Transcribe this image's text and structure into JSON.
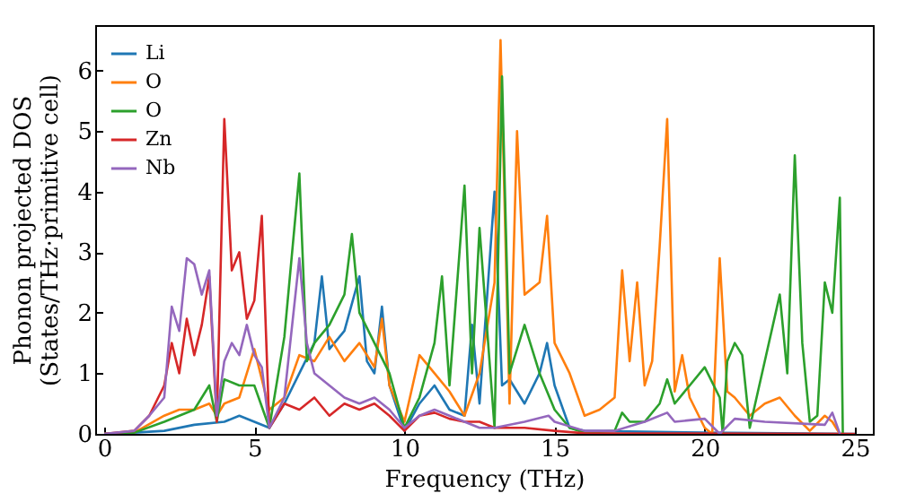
{
  "chart_data": {
    "type": "line",
    "xlabel": "Frequency (THz)",
    "ylabel": "Phonon projected DOS\n(States/THz·primitive cell)",
    "xlim": [
      -0.3,
      25.6
    ],
    "ylim": [
      0,
      6.75
    ],
    "xticks": [
      0,
      5,
      10,
      15,
      20,
      25
    ],
    "yticks": [
      0,
      1,
      2,
      3,
      4,
      5,
      6
    ],
    "grid": false,
    "legend": "top left",
    "series": [
      {
        "name": "Li",
        "color": "#1f77b4",
        "x": [
          0,
          1,
          2,
          3,
          4,
          4.5,
          5,
          5.5,
          6,
          6.5,
          7,
          7.25,
          7.5,
          8,
          8.5,
          8.75,
          9,
          9.25,
          9.5,
          10,
          10.5,
          11,
          11.5,
          12,
          12.25,
          12.5,
          13,
          13.25,
          13.5,
          14,
          14.5,
          14.75,
          15,
          15.5,
          16,
          20,
          25
        ],
        "values": [
          0,
          0.02,
          0.05,
          0.15,
          0.2,
          0.3,
          0.2,
          0.1,
          0.5,
          1.0,
          1.5,
          2.6,
          1.4,
          1.7,
          2.6,
          1.2,
          1.0,
          2.1,
          0.8,
          0.05,
          0.5,
          0.8,
          0.4,
          0.3,
          1.8,
          0.5,
          4.0,
          0.8,
          0.9,
          0.5,
          1.0,
          1.5,
          0.8,
          0.1,
          0.05,
          0.02,
          0
        ]
      },
      {
        "name": "O",
        "color": "#ff7f0e",
        "x": [
          0,
          1,
          2,
          2.5,
          3,
          3.5,
          3.75,
          4,
          4.5,
          5,
          5.5,
          6,
          6.5,
          7,
          7.5,
          8,
          8.5,
          9,
          9.25,
          9.5,
          10,
          10.5,
          11,
          11.5,
          12,
          12.5,
          13,
          13.2,
          13.5,
          13.75,
          14,
          14.5,
          14.75,
          15,
          15.5,
          16,
          16.5,
          17,
          17.25,
          17.5,
          17.75,
          18,
          18.25,
          18.5,
          18.75,
          19,
          19.25,
          19.5,
          20,
          20.25,
          20.5,
          20.75,
          21,
          21.5,
          22,
          22.5,
          23,
          23.5,
          24,
          24.25,
          24.5
        ],
        "values": [
          0,
          0.02,
          0.3,
          0.4,
          0.4,
          0.5,
          0.3,
          0.5,
          0.6,
          1.4,
          0.4,
          0.6,
          1.3,
          1.2,
          1.6,
          1.2,
          1.5,
          1.1,
          1.9,
          0.8,
          0.2,
          1.3,
          1.0,
          0.7,
          0.3,
          1.0,
          2.5,
          6.5,
          0.5,
          5.0,
          2.3,
          2.5,
          3.6,
          1.5,
          1.0,
          0.3,
          0.4,
          0.6,
          2.7,
          1.2,
          2.5,
          0.8,
          1.2,
          3.1,
          5.2,
          0.7,
          1.3,
          0.6,
          0.1,
          0,
          2.9,
          0.7,
          0.6,
          0.3,
          0.5,
          0.6,
          0.3,
          0.05,
          0.3,
          0.2,
          0
        ]
      },
      {
        "name": "O",
        "color": "#2ca02c",
        "x": [
          0,
          1,
          2,
          2.5,
          3,
          3.5,
          3.75,
          4,
          4.5,
          5,
          5.5,
          6,
          6.5,
          6.75,
          7,
          7.5,
          8,
          8.25,
          8.5,
          9,
          9.5,
          10,
          10.5,
          11,
          11.25,
          11.5,
          12,
          12.25,
          12.5,
          13,
          13.25,
          13.5,
          14,
          14.5,
          15,
          15.5,
          16,
          17,
          17.25,
          17.5,
          18,
          18.5,
          18.75,
          19,
          19.5,
          20,
          20.5,
          20.6,
          20.75,
          21,
          21.25,
          21.5,
          22,
          22.5,
          22.75,
          23,
          23.25,
          23.5,
          23.75,
          24,
          24.25,
          24.5,
          24.6
        ],
        "values": [
          0,
          0.02,
          0.2,
          0.3,
          0.4,
          0.8,
          0.2,
          0.9,
          0.8,
          0.8,
          0.1,
          1.6,
          4.3,
          1.2,
          1.5,
          1.8,
          2.3,
          3.3,
          2.0,
          1.5,
          1.0,
          0.1,
          0.6,
          1.5,
          2.6,
          0.8,
          4.1,
          1.0,
          3.4,
          0.1,
          5.9,
          1.0,
          1.8,
          1.0,
          0.4,
          0.1,
          0.02,
          0.05,
          0.35,
          0.2,
          0.2,
          0.5,
          0.9,
          0.5,
          0.8,
          1.1,
          0.6,
          0,
          1.2,
          1.5,
          1.3,
          0.1,
          1.2,
          2.3,
          1.0,
          4.6,
          1.5,
          0.2,
          0.3,
          2.5,
          2.0,
          3.9,
          0
        ]
      },
      {
        "name": "Zn",
        "color": "#d62728",
        "x": [
          0,
          1,
          1.5,
          2,
          2.25,
          2.5,
          2.75,
          3,
          3.25,
          3.5,
          3.75,
          4,
          4.25,
          4.5,
          4.75,
          5,
          5.25,
          5.5,
          6,
          6.5,
          7,
          7.5,
          8,
          8.5,
          9,
          9.5,
          10,
          10.5,
          11,
          11.5,
          12,
          12.5,
          13,
          14,
          15,
          16,
          25
        ],
        "values": [
          0,
          0.05,
          0.3,
          0.8,
          1.5,
          1.0,
          1.9,
          1.3,
          1.8,
          2.6,
          0.2,
          5.2,
          2.7,
          3.0,
          1.9,
          2.2,
          3.6,
          0.1,
          0.5,
          0.4,
          0.6,
          0.3,
          0.5,
          0.4,
          0.5,
          0.3,
          0.05,
          0.3,
          0.35,
          0.25,
          0.2,
          0.2,
          0.1,
          0.1,
          0.05,
          0.01,
          0
        ]
      },
      {
        "name": "Nb",
        "color": "#9467bd",
        "x": [
          0,
          1,
          1.5,
          2,
          2.25,
          2.5,
          2.75,
          3,
          3.25,
          3.5,
          3.75,
          4,
          4.25,
          4.5,
          4.75,
          5,
          5.25,
          5.5,
          6,
          6.5,
          6.75,
          7,
          7.5,
          8,
          8.5,
          9,
          9.5,
          10,
          10.5,
          11,
          11.5,
          12,
          12.5,
          13,
          14,
          14.8,
          15,
          16,
          17,
          18,
          18.75,
          19,
          20,
          20.5,
          21,
          22,
          24,
          24.25,
          24.5
        ],
        "values": [
          0,
          0.05,
          0.3,
          0.6,
          2.1,
          1.7,
          2.9,
          2.8,
          2.3,
          2.7,
          0.3,
          1.2,
          1.5,
          1.3,
          1.8,
          1.3,
          1.1,
          0.1,
          0.6,
          2.9,
          1.5,
          1.0,
          0.8,
          0.6,
          0.5,
          0.6,
          0.4,
          0.1,
          0.3,
          0.4,
          0.3,
          0.2,
          0.1,
          0.1,
          0.2,
          0.3,
          0.2,
          0.05,
          0.05,
          0.2,
          0.35,
          0.2,
          0.25,
          0,
          0.25,
          0.2,
          0.15,
          0.35,
          0
        ]
      }
    ]
  }
}
